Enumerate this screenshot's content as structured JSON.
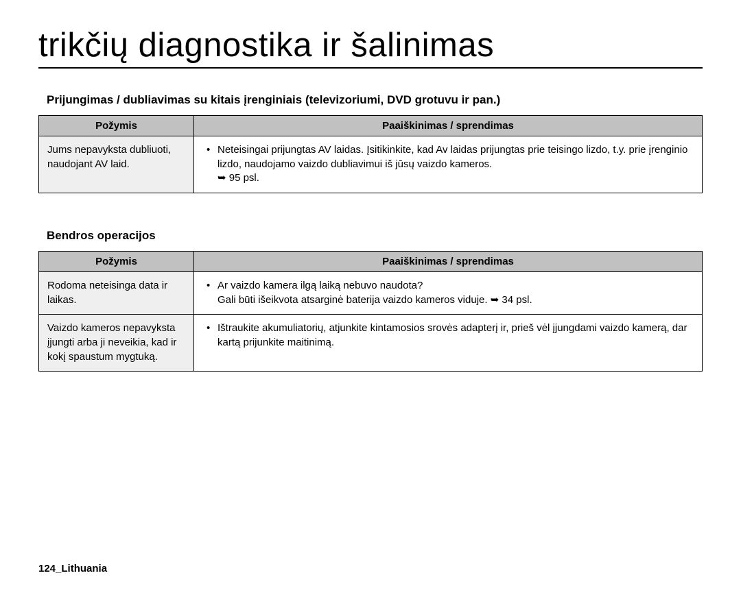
{
  "title": "trikčių diagnostika ir šalinimas",
  "section1": {
    "heading": "Prijungimas / dubliavimas su kitais įrenginiais (televizoriumi, DVD grotuvu ir pan.)",
    "col1": "Požymis",
    "col2": "Paaiškinimas / sprendimas",
    "rows": [
      {
        "symptom": "Jums nepavyksta dubliuoti, naudojant AV laid.",
        "bullet1": "Neteisingai prijungtas AV laidas. Įsitikinkite, kad Av laidas prijungtas prie teisingo lizdo, t.y. prie įrenginio lizdo, naudojamo vaizdo dubliavimui iš jūsų vaizdo kameros.",
        "note": "➥ 95 psl."
      }
    ]
  },
  "section2": {
    "heading": "Bendros operacijos",
    "col1": "Požymis",
    "col2": "Paaiškinimas / sprendimas",
    "rows": [
      {
        "symptom": "Rodoma neteisinga data ir laikas.",
        "bullet1": "Ar vaizdo kamera ilgą laiką nebuvo naudota?",
        "note": "Gali būti išeikvota atsarginė baterija vaizdo kameros viduje. ➥ 34 psl."
      },
      {
        "symptom": "Vaizdo kameros nepavyksta įjungti arba ji neveikia, kad ir kokį spaustum mygtuką.",
        "bullet1": "Ištraukite akumuliatorių, atjunkite kintamosios srovės adapterį ir, prieš vėl įjungdami vaizdo kamerą, dar kartą prijunkite maitinimą."
      }
    ]
  },
  "footer": "124_Lithuania"
}
